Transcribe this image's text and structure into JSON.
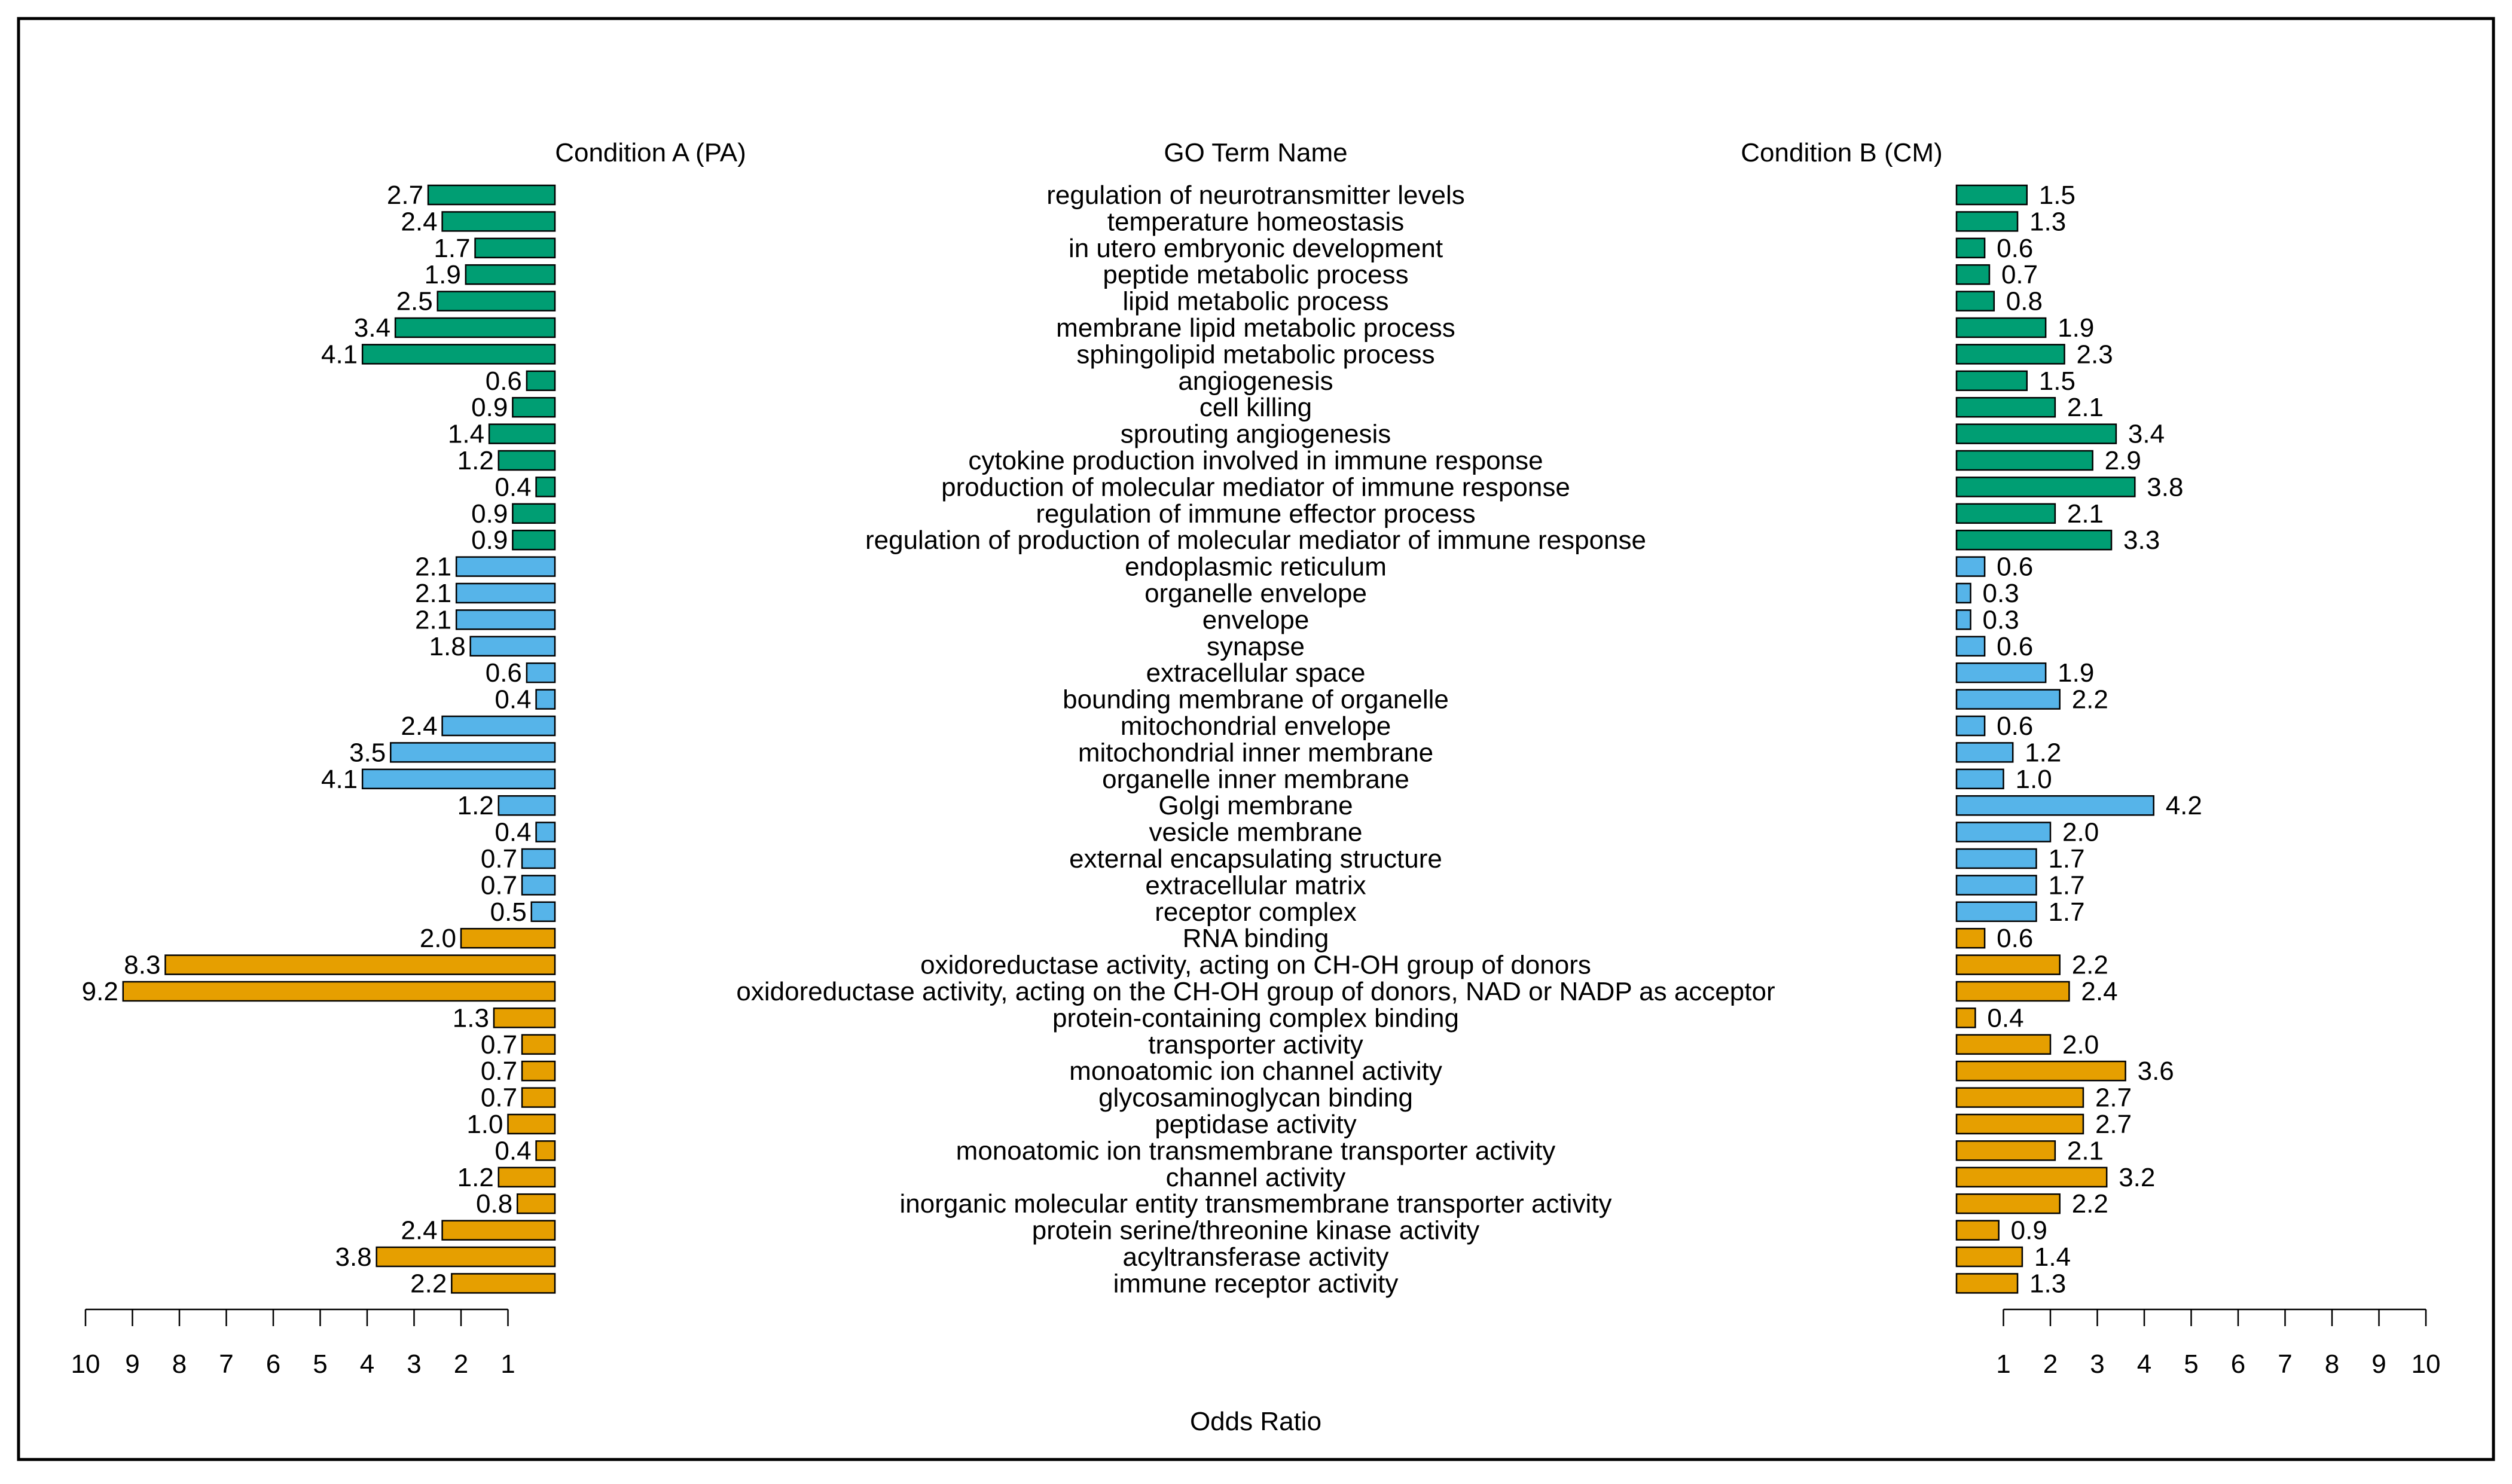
{
  "chart_data": {
    "type": "bar",
    "orientation": "horizontal-mirrored",
    "title_left": "Condition A (PA)",
    "title_center": "GO Term Name",
    "title_right": "Condition B (CM)",
    "xlabel": "Odds Ratio",
    "xlim": [
      0,
      10
    ],
    "ticks": [
      1,
      2,
      3,
      4,
      5,
      6,
      7,
      8,
      9,
      10
    ],
    "colors": {
      "group1": "#009E73",
      "group2": "#56B4E9",
      "group3": "#E69F00"
    },
    "categories": [
      "regulation of neurotransmitter levels",
      "temperature homeostasis",
      "in utero embryonic development",
      "peptide metabolic process",
      "lipid metabolic process",
      "membrane lipid metabolic process",
      "sphingolipid metabolic process",
      "angiogenesis",
      "cell killing",
      "sprouting angiogenesis",
      "cytokine production involved in immune response",
      "production of molecular mediator of immune response",
      "regulation of immune effector process",
      "regulation of production of molecular mediator of immune response",
      "endoplasmic reticulum",
      "organelle envelope",
      "envelope",
      "synapse",
      "extracellular space",
      "bounding membrane of organelle",
      "mitochondrial envelope",
      "mitochondrial inner membrane",
      "organelle inner membrane",
      "Golgi membrane",
      "vesicle membrane",
      "external encapsulating structure",
      "extracellular matrix",
      "receptor complex",
      "RNA binding",
      "oxidoreductase activity, acting on CH-OH group of donors",
      "oxidoreductase activity, acting on the CH-OH group of donors, NAD or NADP as acceptor",
      "protein-containing complex binding",
      "transporter activity",
      "monoatomic ion channel activity",
      "glycosaminoglycan binding",
      "peptidase activity",
      "monoatomic ion transmembrane transporter activity",
      "channel activity",
      "inorganic molecular entity transmembrane transporter activity",
      "protein serine/threonine kinase activity",
      "acyltransferase activity",
      "immune receptor activity"
    ],
    "groups": [
      "group1",
      "group1",
      "group1",
      "group1",
      "group1",
      "group1",
      "group1",
      "group1",
      "group1",
      "group1",
      "group1",
      "group1",
      "group1",
      "group1",
      "group2",
      "group2",
      "group2",
      "group2",
      "group2",
      "group2",
      "group2",
      "group2",
      "group2",
      "group2",
      "group2",
      "group2",
      "group2",
      "group2",
      "group3",
      "group3",
      "group3",
      "group3",
      "group3",
      "group3",
      "group3",
      "group3",
      "group3",
      "group3",
      "group3",
      "group3",
      "group3",
      "group3"
    ],
    "series": [
      {
        "name": "Condition A (PA)",
        "values": [
          2.7,
          2.4,
          1.7,
          1.9,
          2.5,
          3.4,
          4.1,
          0.6,
          0.9,
          1.4,
          1.2,
          0.4,
          0.9,
          0.9,
          2.1,
          2.1,
          2.1,
          1.8,
          0.6,
          0.4,
          2.4,
          3.5,
          4.1,
          1.2,
          0.4,
          0.7,
          0.7,
          0.5,
          2.0,
          8.3,
          9.2,
          1.3,
          0.7,
          0.7,
          0.7,
          1.0,
          0.4,
          1.2,
          0.8,
          2.4,
          3.8,
          2.2
        ]
      },
      {
        "name": "Condition B (CM)",
        "values": [
          1.5,
          1.3,
          0.6,
          0.7,
          0.8,
          1.9,
          2.3,
          1.5,
          2.1,
          3.4,
          2.9,
          3.8,
          2.1,
          3.3,
          0.6,
          0.3,
          0.3,
          0.6,
          1.9,
          2.2,
          0.6,
          1.2,
          1.0,
          4.2,
          2.0,
          1.7,
          1.7,
          1.7,
          0.6,
          2.2,
          2.4,
          0.4,
          2.0,
          3.6,
          2.7,
          2.7,
          2.1,
          3.2,
          2.2,
          0.9,
          1.4,
          1.3
        ]
      }
    ]
  }
}
